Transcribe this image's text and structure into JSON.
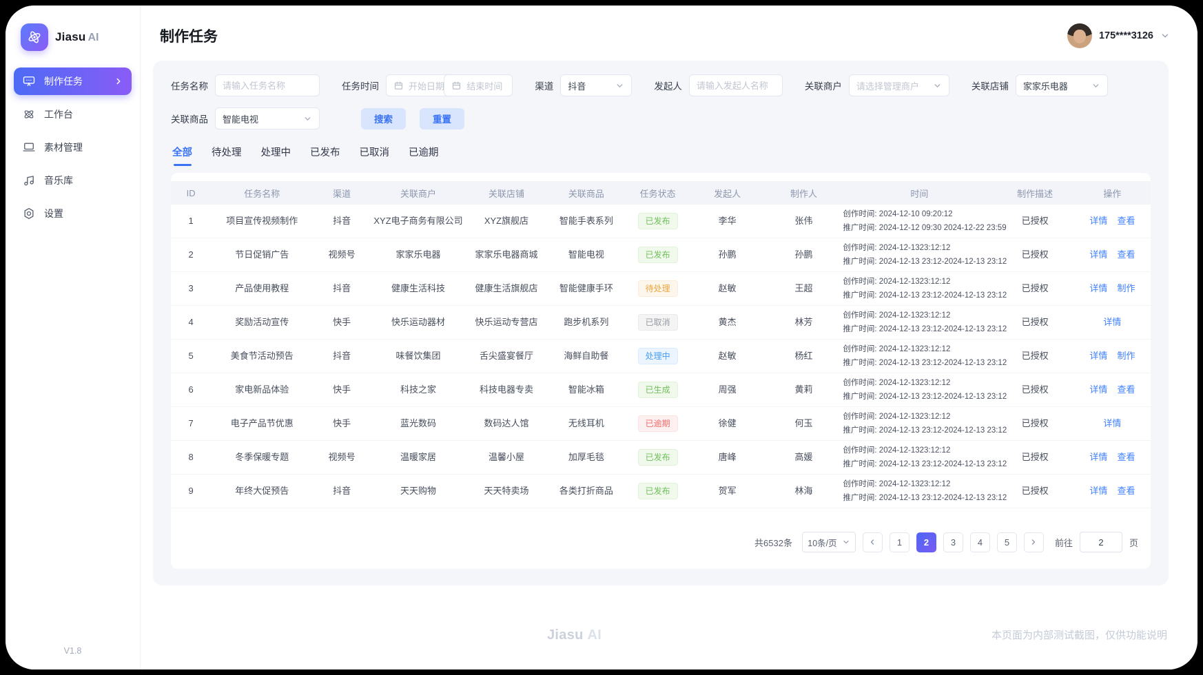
{
  "sidebar": {
    "brand": {
      "name": "Jiasu",
      "suffix": "AI"
    },
    "items": [
      {
        "label": "制作任务",
        "icon": "screen-icon",
        "active": true
      },
      {
        "label": "工作台",
        "icon": "atom-icon",
        "active": false
      },
      {
        "label": "素材管理",
        "icon": "laptop-icon",
        "active": false
      },
      {
        "label": "音乐库",
        "icon": "music-icon",
        "active": false
      },
      {
        "label": "设置",
        "icon": "gear-icon",
        "active": false
      }
    ],
    "version": "V1.8"
  },
  "header": {
    "title": "制作任务",
    "user_name": "175****3126"
  },
  "filters": {
    "task_name": {
      "label": "任务名称",
      "placeholder": "请输入任务名称"
    },
    "task_time": {
      "label": "任务时间",
      "start_placeholder": "开始日期",
      "end_placeholder": "结束时间",
      "separator": "-"
    },
    "channel": {
      "label": "渠道",
      "value": "抖音"
    },
    "initiator": {
      "label": "发起人",
      "placeholder": "请输入发起人名称"
    },
    "merchant": {
      "label": "关联商户",
      "placeholder": "请选择管理商户"
    },
    "store": {
      "label": "关联店铺",
      "value": "家家乐电器"
    },
    "product": {
      "label": "关联商品",
      "value": "智能电视"
    },
    "search_label": "搜索",
    "reset_label": "重置"
  },
  "tabs": [
    {
      "label": "全部",
      "active": true
    },
    {
      "label": "待处理",
      "active": false
    },
    {
      "label": "处理中",
      "active": false
    },
    {
      "label": "已发布",
      "active": false
    },
    {
      "label": "已取消",
      "active": false
    },
    {
      "label": "已逾期",
      "active": false
    }
  ],
  "table": {
    "columns": [
      "ID",
      "任务名称",
      "渠道",
      "关联商户",
      "关联店铺",
      "关联商品",
      "任务状态",
      "发起人",
      "制作人",
      "时间",
      "制作描述",
      "操作"
    ],
    "rows": [
      {
        "id": "1",
        "name": "项目宣传视频制作",
        "channel": "抖音",
        "merchant": "XYZ电子商务有限公司",
        "store": "XYZ旗舰店",
        "product": "智能手表系列",
        "status": "已发布",
        "variant": "green",
        "initiator": "李华",
        "maker": "张伟",
        "time1": "创作时间: 2024-12-10 09:20:12",
        "time2": "推广时间: 2024-12-12 09:30 2024-12-22 23:59",
        "desc": "已授权",
        "actions": [
          "详情",
          "查看"
        ]
      },
      {
        "id": "2",
        "name": "节日促销广告",
        "channel": "视频号",
        "merchant": "家家乐电器",
        "store": "家家乐电器商城",
        "product": "智能电视",
        "status": "已发布",
        "variant": "green",
        "initiator": "孙鹏",
        "maker": "孙鹏",
        "time1": "创作时间: 2024-12-1323:12:12",
        "time2": "推广时间: 2024-12-13 23:12-2024-12-13 23:12",
        "desc": "已授权",
        "actions": [
          "详情",
          "查看"
        ]
      },
      {
        "id": "3",
        "name": "产品使用教程",
        "channel": "抖音",
        "merchant": "健康生活科技",
        "store": "健康生活旗舰店",
        "product": "智能健康手环",
        "status": "待处理",
        "variant": "orange",
        "initiator": "赵敏",
        "maker": "王超",
        "time1": "创作时间: 2024-12-1323:12:12",
        "time2": "推广时间: 2024-12-13 23:12-2024-12-13 23:12",
        "desc": "已授权",
        "actions": [
          "详情",
          "制作"
        ]
      },
      {
        "id": "4",
        "name": "奖励活动宣传",
        "channel": "快手",
        "merchant": "快乐运动器材",
        "store": "快乐运动专营店",
        "product": "跑步机系列",
        "status": "已取消",
        "variant": "gray",
        "initiator": "黄杰",
        "maker": "林芳",
        "time1": "创作时间: 2024-12-1323:12:12",
        "time2": "推广时间: 2024-12-13 23:12-2024-12-13 23:12",
        "desc": "已授权",
        "actions": [
          "详情"
        ]
      },
      {
        "id": "5",
        "name": "美食节活动预告",
        "channel": "抖音",
        "merchant": "味餐饮集团",
        "store": "舌尖盛宴餐厅",
        "product": "海鲜自助餐",
        "status": "处理中",
        "variant": "blue",
        "initiator": "赵敏",
        "maker": "杨红",
        "time1": "创作时间: 2024-12-1323:12:12",
        "time2": "推广时间: 2024-12-13 23:12-2024-12-13 23:12",
        "desc": "已授权",
        "actions": [
          "详情",
          "制作"
        ]
      },
      {
        "id": "6",
        "name": "家电新品体验",
        "channel": "快手",
        "merchant": "科技之家",
        "store": "科技电器专卖",
        "product": "智能冰箱",
        "status": "已生成",
        "variant": "green",
        "initiator": "周强",
        "maker": "黄莉",
        "time1": "创作时间: 2024-12-1323:12:12",
        "time2": "推广时间: 2024-12-13 23:12-2024-12-13 23:12",
        "desc": "已授权",
        "actions": [
          "详情",
          "查看"
        ]
      },
      {
        "id": "7",
        "name": "电子产品节优惠",
        "channel": "快手",
        "merchant": "蓝光数码",
        "store": "数码达人馆",
        "product": "无线耳机",
        "status": "已逾期",
        "variant": "red",
        "initiator": "徐健",
        "maker": "何玉",
        "time1": "创作时间: 2024-12-1323:12:12",
        "time2": "推广时间: 2024-12-13 23:12-2024-12-13 23:12",
        "desc": "已授权",
        "actions": [
          "详情"
        ]
      },
      {
        "id": "8",
        "name": "冬季保暖专题",
        "channel": "视频号",
        "merchant": "温暖家居",
        "store": "温馨小屋",
        "product": "加厚毛毯",
        "status": "已发布",
        "variant": "green",
        "initiator": "唐峰",
        "maker": "高媛",
        "time1": "创作时间: 2024-12-1323:12:12",
        "time2": "推广时间: 2024-12-13 23:12-2024-12-13 23:12",
        "desc": "已授权",
        "actions": [
          "详情",
          "查看"
        ]
      },
      {
        "id": "9",
        "name": "年终大促预告",
        "channel": "抖音",
        "merchant": "天天购物",
        "store": "天天特卖场",
        "product": "各类打折商品",
        "status": "已发布",
        "variant": "green",
        "initiator": "贺军",
        "maker": "林海",
        "time1": "创作时间: 2024-12-1323:12:12",
        "time2": "推广时间: 2024-12-13 23:12-2024-12-13 23:12",
        "desc": "已授权",
        "actions": [
          "详情",
          "查看"
        ]
      }
    ]
  },
  "pagination": {
    "total": "共6532条",
    "page_size": "10条/页",
    "pages": [
      "1",
      "2",
      "3",
      "4",
      "5"
    ],
    "active_page": "2",
    "goto_label": "前往",
    "goto_value": "2",
    "unit": "页"
  },
  "footer": {
    "brand": "Jiasu",
    "brand_suffix": "AI",
    "note": "本页面为内部测试截图，仅供功能说明"
  },
  "colors": {
    "accent": "#3a74f4",
    "gradient_start": "#4c6bf5",
    "gradient_end": "#8a5cf6",
    "status_published": "#6fc05b",
    "status_pending": "#eaa63e",
    "status_canceled": "#979ba3",
    "status_processing": "#459ff5",
    "status_overdue": "#f16c6c"
  }
}
